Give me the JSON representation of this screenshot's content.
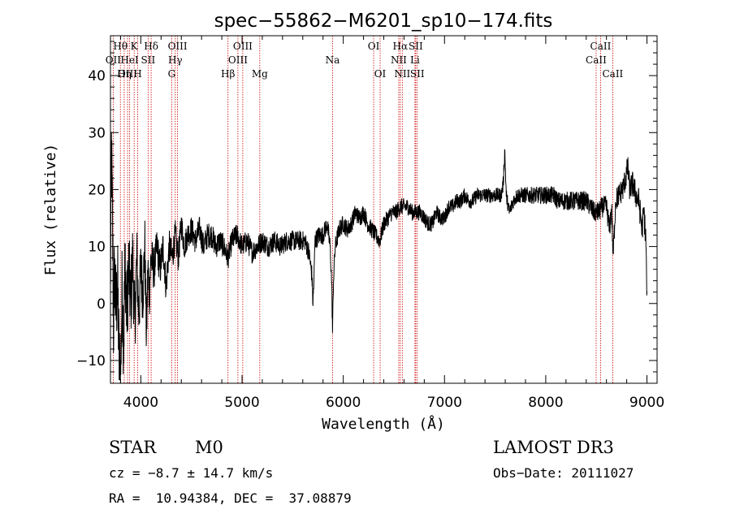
{
  "chart_data": {
    "type": "line",
    "title": "spec−55862−M6201_sp10−174.fits",
    "xlabel": "Wavelength (Å)",
    "ylabel": "Flux (relative)",
    "xlim": [
      3700,
      9100
    ],
    "ylim": [
      -14,
      47
    ],
    "xticks": [
      {
        "value": 4000,
        "label": "4000"
      },
      {
        "value": 5000,
        "label": "5000"
      },
      {
        "value": 6000,
        "label": "6000"
      },
      {
        "value": 7000,
        "label": "7000"
      },
      {
        "value": 8000,
        "label": "8000"
      },
      {
        "value": 9000,
        "label": "9000"
      }
    ],
    "yticks": [
      {
        "value": -10,
        "label": "−10"
      },
      {
        "value": 0,
        "label": "0"
      },
      {
        "value": 10,
        "label": "10"
      },
      {
        "value": 20,
        "label": "20"
      },
      {
        "value": 30,
        "label": "30"
      },
      {
        "value": 40,
        "label": "40"
      }
    ],
    "xminor_step": 200,
    "yminor_step": 2,
    "line_color": "#000000",
    "marker_color": "#cc0000",
    "spectral_lines": [
      {
        "id": "oii",
        "label": "OII",
        "wavelength": 3727,
        "row": 1
      },
      {
        "id": "h-theta",
        "label": "Hθ",
        "wavelength": 3798,
        "row": 0
      },
      {
        "id": "h-eta",
        "label": "Hη",
        "wavelength": 3836,
        "row": 2
      },
      {
        "id": "oiii-3869",
        "label": "OIII",
        "wavelength": 3869,
        "row": 2
      },
      {
        "id": "he-i",
        "label": "HeI",
        "wavelength": 3889,
        "row": 1
      },
      {
        "id": "k",
        "label": "K",
        "wavelength": 3934,
        "row": 0
      },
      {
        "id": "h",
        "label": "H",
        "wavelength": 3969,
        "row": 2
      },
      {
        "id": "sii-4072",
        "label": "SII",
        "wavelength": 4072,
        "row": 1
      },
      {
        "id": "h-delta",
        "label": "Hδ",
        "wavelength": 4102,
        "row": 0
      },
      {
        "id": "g",
        "label": "G",
        "wavelength": 4305,
        "row": 2
      },
      {
        "id": "h-gamma",
        "label": "Hγ",
        "wavelength": 4340,
        "row": 1
      },
      {
        "id": "oiii-4363",
        "label": "OIII",
        "wavelength": 4363,
        "row": 0
      },
      {
        "id": "h-beta",
        "label": "Hβ",
        "wavelength": 4861,
        "row": 2
      },
      {
        "id": "oiii-4959",
        "label": "OIII",
        "wavelength": 4959,
        "row": 1
      },
      {
        "id": "oiii-5007",
        "label": "OIII",
        "wavelength": 5007,
        "row": 0
      },
      {
        "id": "mg",
        "label": "Mg",
        "wavelength": 5175,
        "row": 2
      },
      {
        "id": "na",
        "label": "Na",
        "wavelength": 5894,
        "row": 1
      },
      {
        "id": "oi-6300",
        "label": "OI",
        "wavelength": 6300,
        "row": 0
      },
      {
        "id": "oi-6364",
        "label": "OI",
        "wavelength": 6364,
        "row": 2
      },
      {
        "id": "nii-6548",
        "label": "NII",
        "wavelength": 6548,
        "row": 1
      },
      {
        "id": "h-alpha",
        "label": "Hα",
        "wavelength": 6563,
        "row": 0
      },
      {
        "id": "nii-6583",
        "label": "NII",
        "wavelength": 6583,
        "row": 2
      },
      {
        "id": "li",
        "label": "Li",
        "wavelength": 6708,
        "row": 1
      },
      {
        "id": "sii-6716",
        "label": "SII",
        "wavelength": 6716,
        "row": 0
      },
      {
        "id": "sii-6731",
        "label": "SII",
        "wavelength": 6731,
        "row": 2
      },
      {
        "id": "caii-8498",
        "label": "CaII",
        "wavelength": 8498,
        "row": 1
      },
      {
        "id": "caii-8542",
        "label": "CaII",
        "wavelength": 8542,
        "row": 0
      },
      {
        "id": "caii-8662",
        "label": "CaII",
        "wavelength": 8662,
        "row": 2
      }
    ],
    "spectrum": {
      "anchors": [
        [
          3700,
          2
        ],
        [
          3710,
          27
        ],
        [
          3720,
          14
        ],
        [
          3730,
          -4
        ],
        [
          3740,
          6
        ],
        [
          3755,
          -2
        ],
        [
          3770,
          4
        ],
        [
          3785,
          -10
        ],
        [
          3800,
          -13
        ],
        [
          3815,
          3
        ],
        [
          3830,
          -7
        ],
        [
          3845,
          8
        ],
        [
          3860,
          -2
        ],
        [
          3880,
          6
        ],
        [
          3900,
          0
        ],
        [
          3920,
          8
        ],
        [
          3940,
          -4
        ],
        [
          3960,
          8
        ],
        [
          3980,
          -2
        ],
        [
          4000,
          6
        ],
        [
          4020,
          2
        ],
        [
          4040,
          10
        ],
        [
          4055,
          -6
        ],
        [
          4070,
          6
        ],
        [
          4085,
          2
        ],
        [
          4100,
          8
        ],
        [
          4130,
          6
        ],
        [
          4160,
          10
        ],
        [
          4190,
          6
        ],
        [
          4220,
          10
        ],
        [
          4250,
          3
        ],
        [
          4280,
          10
        ],
        [
          4310,
          8
        ],
        [
          4340,
          12
        ],
        [
          4370,
          8
        ],
        [
          4400,
          14
        ],
        [
          4430,
          10
        ],
        [
          4460,
          12
        ],
        [
          4500,
          13
        ],
        [
          4540,
          11
        ],
        [
          4580,
          13
        ],
        [
          4620,
          10
        ],
        [
          4660,
          12
        ],
        [
          4700,
          12
        ],
        [
          4740,
          10
        ],
        [
          4780,
          11
        ],
        [
          4820,
          10
        ],
        [
          4860,
          8
        ],
        [
          4900,
          11
        ],
        [
          4950,
          12
        ],
        [
          5000,
          10
        ],
        [
          5050,
          11
        ],
        [
          5100,
          9
        ],
        [
          5150,
          10
        ],
        [
          5200,
          11
        ],
        [
          5260,
          10
        ],
        [
          5320,
          11
        ],
        [
          5380,
          10
        ],
        [
          5440,
          11
        ],
        [
          5500,
          11
        ],
        [
          5560,
          11
        ],
        [
          5620,
          11
        ],
        [
          5660,
          9
        ],
        [
          5690,
          5
        ],
        [
          5700,
          0
        ],
        [
          5710,
          4
        ],
        [
          5720,
          11
        ],
        [
          5760,
          12
        ],
        [
          5800,
          12
        ],
        [
          5840,
          14
        ],
        [
          5870,
          10
        ],
        [
          5885,
          4
        ],
        [
          5894,
          -5
        ],
        [
          5903,
          4
        ],
        [
          5920,
          10
        ],
        [
          5960,
          13
        ],
        [
          6000,
          14
        ],
        [
          6040,
          13
        ],
        [
          6080,
          14
        ],
        [
          6120,
          16
        ],
        [
          6160,
          15
        ],
        [
          6200,
          16
        ],
        [
          6240,
          14
        ],
        [
          6280,
          13
        ],
        [
          6320,
          12
        ],
        [
          6360,
          11
        ],
        [
          6400,
          14
        ],
        [
          6440,
          15
        ],
        [
          6480,
          16
        ],
        [
          6520,
          16
        ],
        [
          6563,
          17
        ],
        [
          6600,
          17
        ],
        [
          6640,
          17
        ],
        [
          6680,
          16
        ],
        [
          6720,
          16
        ],
        [
          6760,
          16
        ],
        [
          6800,
          15
        ],
        [
          6840,
          14
        ],
        [
          6880,
          14
        ],
        [
          6920,
          16
        ],
        [
          6960,
          15
        ],
        [
          7000,
          15
        ],
        [
          7040,
          17
        ],
        [
          7080,
          17
        ],
        [
          7120,
          18
        ],
        [
          7160,
          18
        ],
        [
          7200,
          19
        ],
        [
          7240,
          18
        ],
        [
          7280,
          18
        ],
        [
          7320,
          19
        ],
        [
          7360,
          19
        ],
        [
          7400,
          19
        ],
        [
          7440,
          19
        ],
        [
          7480,
          19
        ],
        [
          7520,
          19
        ],
        [
          7560,
          19
        ],
        [
          7580,
          21
        ],
        [
          7595,
          27
        ],
        [
          7610,
          19
        ],
        [
          7640,
          16
        ],
        [
          7680,
          18
        ],
        [
          7720,
          19
        ],
        [
          7760,
          19
        ],
        [
          7800,
          19
        ],
        [
          7840,
          19
        ],
        [
          7880,
          19
        ],
        [
          7920,
          19
        ],
        [
          7960,
          19
        ],
        [
          8000,
          19
        ],
        [
          8040,
          19
        ],
        [
          8080,
          19
        ],
        [
          8120,
          18
        ],
        [
          8160,
          18
        ],
        [
          8200,
          18
        ],
        [
          8240,
          18
        ],
        [
          8280,
          18
        ],
        [
          8320,
          18
        ],
        [
          8360,
          18
        ],
        [
          8400,
          18
        ],
        [
          8440,
          17
        ],
        [
          8480,
          16
        ],
        [
          8520,
          16
        ],
        [
          8560,
          17
        ],
        [
          8600,
          17
        ],
        [
          8630,
          13
        ],
        [
          8650,
          17
        ],
        [
          8665,
          8
        ],
        [
          8690,
          18
        ],
        [
          8720,
          19
        ],
        [
          8760,
          20
        ],
        [
          8790,
          22
        ],
        [
          8810,
          24
        ],
        [
          8830,
          20
        ],
        [
          8860,
          21
        ],
        [
          8890,
          19
        ],
        [
          8920,
          18
        ],
        [
          8950,
          13
        ],
        [
          8970,
          16
        ],
        [
          8990,
          11
        ],
        [
          9000,
          0
        ]
      ],
      "noise_amplitude": [
        [
          3700,
          9
        ],
        [
          3850,
          8
        ],
        [
          4000,
          6
        ],
        [
          4150,
          3.5
        ],
        [
          4400,
          2.5
        ],
        [
          5000,
          2
        ],
        [
          6000,
          1.6
        ],
        [
          7500,
          1.3
        ],
        [
          8500,
          1.8
        ],
        [
          9000,
          2.5
        ]
      ],
      "step": 2
    }
  },
  "info": {
    "object_type": "STAR",
    "subclass": "M0",
    "survey": "LAMOST DR3",
    "redshift": "cz = −8.7 ± 14.7 km/s",
    "obs_date": "Obs−Date: 20111027",
    "coords": "RA =  10.94384, DEC =  37.08879"
  }
}
